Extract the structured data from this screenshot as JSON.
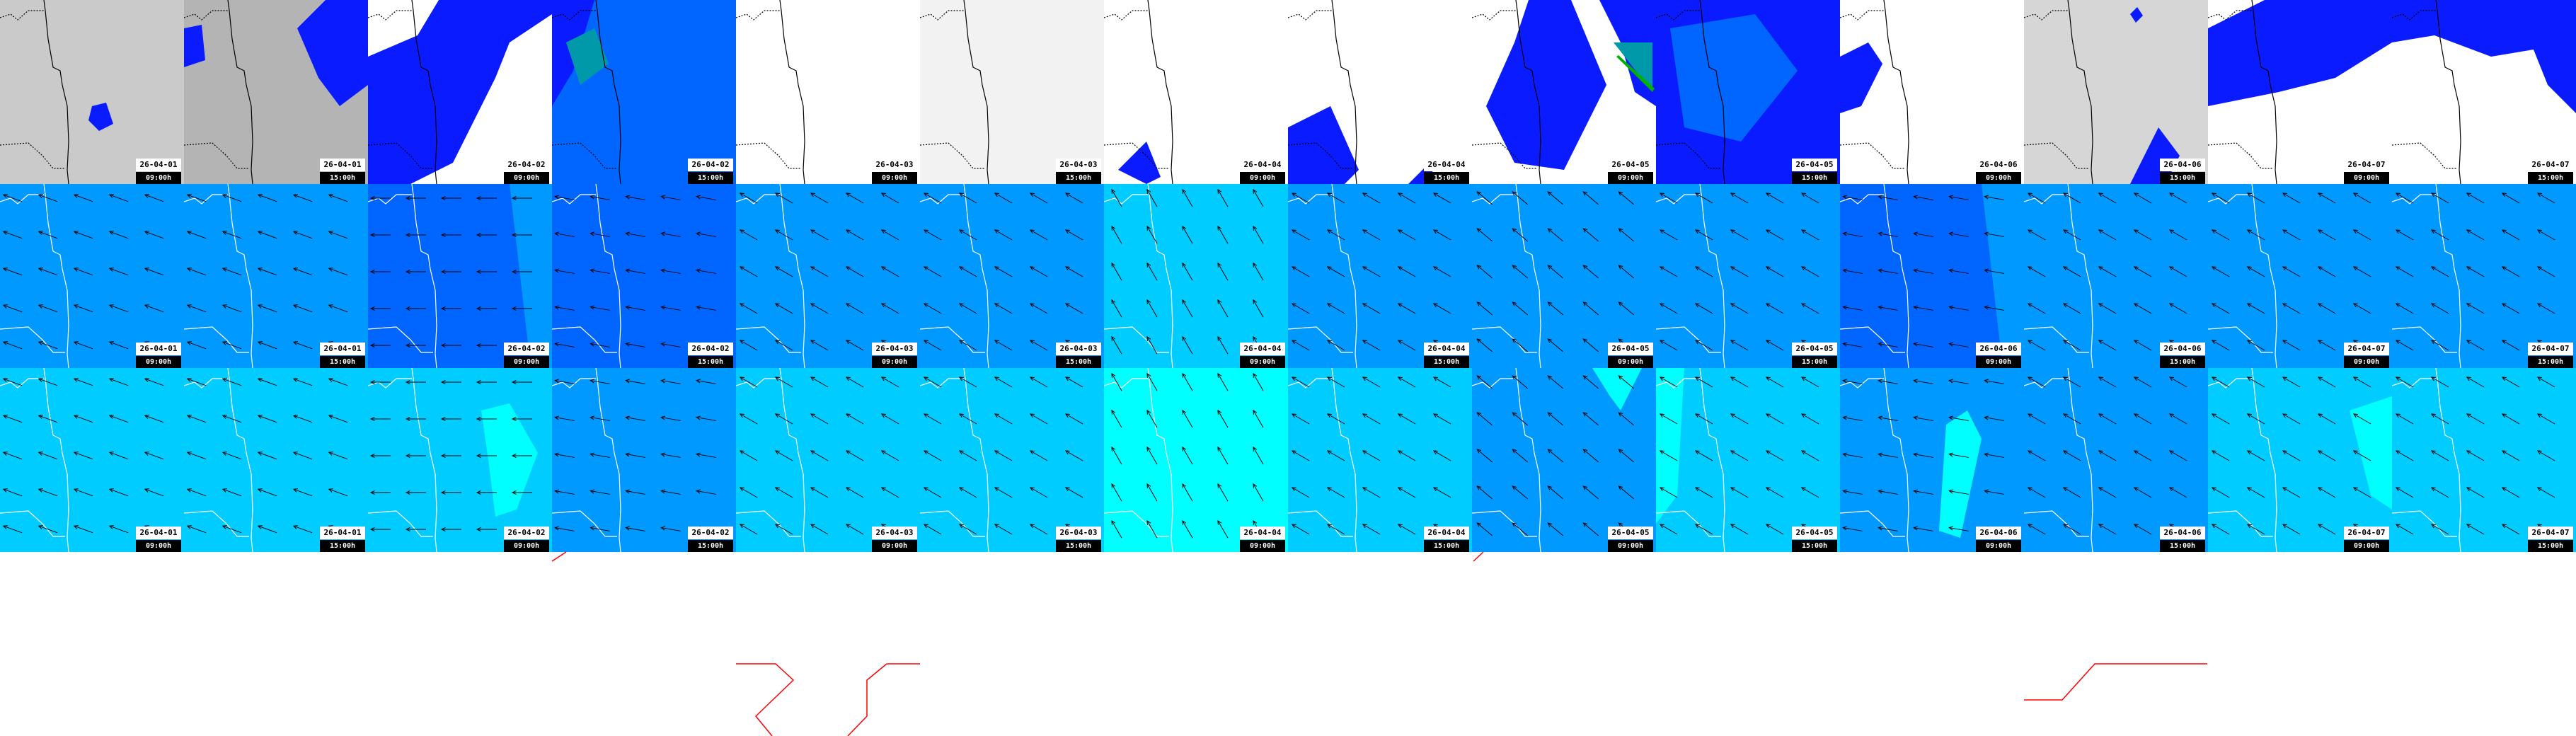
{
  "rows": [
    {
      "layer": "precipitation",
      "bases": [
        "#cacaca",
        "#b4b4b4",
        "#ffffff",
        "#0a1cff",
        "#ffffff",
        "#f2f2f2",
        "#ffffff",
        "#ffffff",
        "#ffffff",
        "#0a4cff",
        "#ffffff",
        "#d6d6d6",
        "#ffffff",
        "#ffffff"
      ]
    },
    {
      "layer": "wind",
      "bases": [
        "#0099ff",
        "#0099ff",
        "#0066ff",
        "#0066ff",
        "#0099ff",
        "#0099ff",
        "#00ccff",
        "#0099ff",
        "#0099ff",
        "#0099ff",
        "#0066ff",
        "#0099ff",
        "#0099ff",
        "#0099ff"
      ]
    },
    {
      "layer": "wind-gust",
      "bases": [
        "#00ccff",
        "#00ccff",
        "#00ccff",
        "#0099ff",
        "#00ccff",
        "#00ccff",
        "#00ffff",
        "#00ccff",
        "#0099ff",
        "#00ccff",
        "#0099ff",
        "#0099ff",
        "#00ccff",
        "#00ccff"
      ]
    }
  ],
  "timestamps": [
    {
      "date": "26-04-01",
      "time": "09:00h"
    },
    {
      "date": "26-04-01",
      "time": "15:00h"
    },
    {
      "date": "26-04-02",
      "time": "09:00h"
    },
    {
      "date": "26-04-02",
      "time": "15:00h"
    },
    {
      "date": "26-04-03",
      "time": "09:00h"
    },
    {
      "date": "26-04-03",
      "time": "15:00h"
    },
    {
      "date": "26-04-04",
      "time": "09:00h"
    },
    {
      "date": "26-04-04",
      "time": "15:00h"
    },
    {
      "date": "26-04-05",
      "time": "09:00h"
    },
    {
      "date": "26-04-05",
      "time": "15:00h"
    },
    {
      "date": "26-04-06",
      "time": "09:00h"
    },
    {
      "date": "26-04-06",
      "time": "15:00h"
    },
    {
      "date": "26-04-07",
      "time": "09:00h"
    },
    {
      "date": "26-04-07",
      "time": "15:00h"
    }
  ],
  "wind_direction_deg": [
    290,
    290,
    270,
    280,
    300,
    300,
    330,
    300,
    310,
    300,
    280,
    300,
    300,
    300
  ],
  "colors": {
    "precip_light": "#0a1cff",
    "precip_mid": "#0066ff",
    "precip_heavy": "#0099aa",
    "precip_extreme": "#00b000",
    "gust_cyan": "#00ffff",
    "trace_red": "#ff0000"
  }
}
